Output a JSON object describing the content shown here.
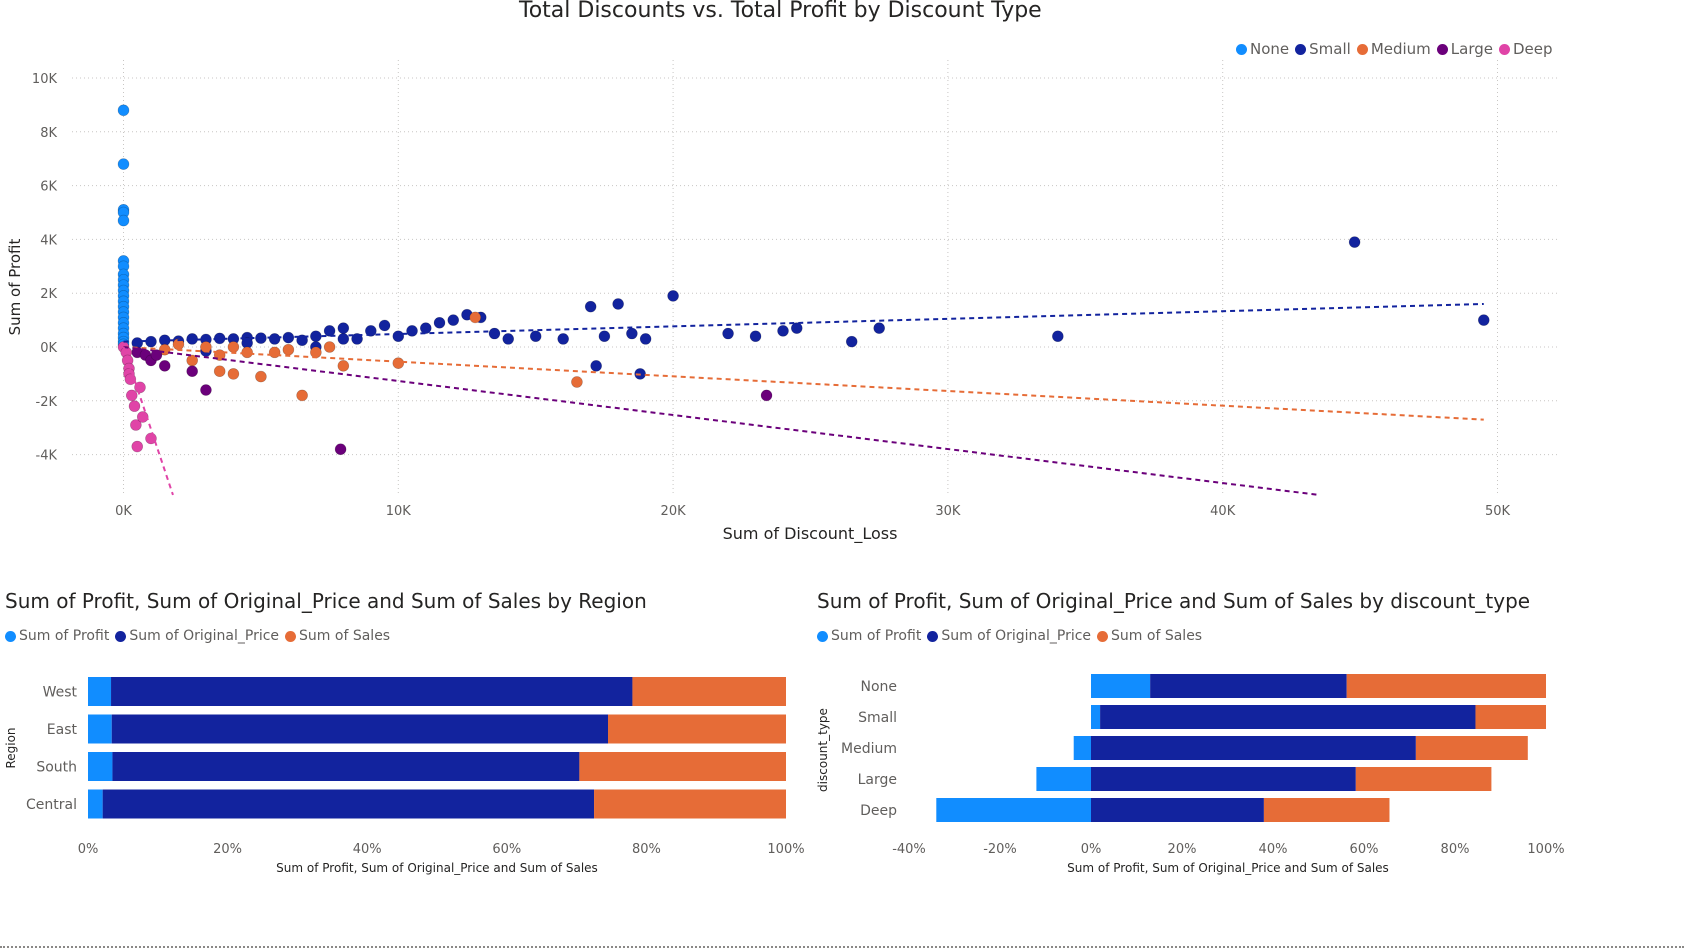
{
  "colors": {
    "None": "#118DFF",
    "Small": "#12239E",
    "Medium": "#E66C37",
    "Large": "#6B007B",
    "Deep": "#E044A7"
  },
  "chart_data": [
    {
      "type": "scatter",
      "title": "Total Discounts vs. Total Profit by Discount Type",
      "xlabel": "Sum of Discount_Loss",
      "ylabel": "Sum of Profit",
      "xlim": [
        -4500,
        53000
      ],
      "ylim": [
        -5500,
        10500
      ],
      "xticks": [
        0,
        10000,
        20000,
        30000,
        40000,
        50000
      ],
      "xtick_labels": [
        "0K",
        "10K",
        "20K",
        "30K",
        "40K",
        "50K"
      ],
      "yticks": [
        -4000,
        -2000,
        0,
        2000,
        4000,
        6000,
        8000,
        10000
      ],
      "ytick_labels": [
        "-4K",
        "-2K",
        "0K",
        "2K",
        "4K",
        "6K",
        "8K",
        "10K"
      ],
      "legend_position": "top-right",
      "grid": true,
      "series": [
        {
          "name": "None",
          "color": "#118DFF",
          "points": [
            [
              0,
              8800
            ],
            [
              0,
              6800
            ],
            [
              0,
              5100
            ],
            [
              0,
              5000
            ],
            [
              0,
              4700
            ],
            [
              0,
              3200
            ],
            [
              0,
              3000
            ],
            [
              0,
              2700
            ],
            [
              0,
              2500
            ],
            [
              0,
              2300
            ],
            [
              0,
              2100
            ],
            [
              0,
              1900
            ],
            [
              0,
              1700
            ],
            [
              0,
              1500
            ],
            [
              0,
              1300
            ],
            [
              0,
              1100
            ],
            [
              0,
              900
            ],
            [
              0,
              700
            ],
            [
              0,
              500
            ],
            [
              0,
              350
            ],
            [
              0,
              200
            ],
            [
              0,
              100
            ]
          ],
          "trend": null
        },
        {
          "name": "Small",
          "color": "#12239E",
          "points": [
            [
              500,
              150
            ],
            [
              1000,
              200
            ],
            [
              1500,
              250
            ],
            [
              2000,
              220
            ],
            [
              2500,
              300
            ],
            [
              3000,
              280
            ],
            [
              3500,
              320
            ],
            [
              4000,
              300
            ],
            [
              4500,
              350
            ],
            [
              5000,
              330
            ],
            [
              5500,
              300
            ],
            [
              6000,
              350
            ],
            [
              6500,
              250
            ],
            [
              7000,
              400
            ],
            [
              7500,
              600
            ],
            [
              8000,
              700
            ],
            [
              8000,
              300
            ],
            [
              8500,
              300
            ],
            [
              9000,
              600
            ],
            [
              9500,
              800
            ],
            [
              10000,
              400
            ],
            [
              10500,
              600
            ],
            [
              11000,
              700
            ],
            [
              11500,
              900
            ],
            [
              12000,
              1000
            ],
            [
              12500,
              1200
            ],
            [
              13000,
              1100
            ],
            [
              13500,
              500
            ],
            [
              14000,
              300
            ],
            [
              15000,
              400
            ],
            [
              16000,
              300
            ],
            [
              17000,
              1500
            ],
            [
              17500,
              400
            ],
            [
              18000,
              1600
            ],
            [
              18500,
              500
            ],
            [
              19000,
              300
            ],
            [
              20000,
              1900
            ],
            [
              22000,
              500
            ],
            [
              23000,
              400
            ],
            [
              24000,
              600
            ],
            [
              24500,
              700
            ],
            [
              26500,
              200
            ],
            [
              27500,
              700
            ],
            [
              34000,
              400
            ],
            [
              44800,
              3900
            ],
            [
              49500,
              1000
            ],
            [
              17200,
              -700
            ],
            [
              18800,
              -1000
            ],
            [
              3000,
              -150
            ],
            [
              4500,
              150
            ],
            [
              7000,
              0
            ]
          ],
          "trend": [
            [
              0,
              200
            ],
            [
              49500,
              1600
            ]
          ]
        },
        {
          "name": "Medium",
          "color": "#E66C37",
          "points": [
            [
              1500,
              -100
            ],
            [
              2000,
              100
            ],
            [
              2500,
              -500
            ],
            [
              3000,
              0
            ],
            [
              3500,
              -300
            ],
            [
              3500,
              -900
            ],
            [
              4000,
              0
            ],
            [
              4000,
              -1000
            ],
            [
              4500,
              -200
            ],
            [
              5000,
              -1100
            ],
            [
              5500,
              -200
            ],
            [
              6000,
              -100
            ],
            [
              6500,
              -1800
            ],
            [
              7000,
              -200
            ],
            [
              7500,
              0
            ],
            [
              8000,
              -700
            ],
            [
              10000,
              -600
            ],
            [
              12800,
              1100
            ],
            [
              16500,
              -1300
            ]
          ],
          "trend": [
            [
              0,
              0
            ],
            [
              49500,
              -2700
            ]
          ]
        },
        {
          "name": "Large",
          "color": "#6B007B",
          "points": [
            [
              500,
              -200
            ],
            [
              800,
              -300
            ],
            [
              1000,
              -500
            ],
            [
              1200,
              -300
            ],
            [
              1500,
              -700
            ],
            [
              2500,
              -900
            ],
            [
              3000,
              -1600
            ],
            [
              7900,
              -3800
            ],
            [
              23400,
              -1800
            ]
          ],
          "trend": [
            [
              0,
              0
            ],
            [
              43500,
              -5500
            ]
          ]
        },
        {
          "name": "Deep",
          "color": "#E044A7",
          "points": [
            [
              0,
              0
            ],
            [
              100,
              -200
            ],
            [
              150,
              -500
            ],
            [
              200,
              -800
            ],
            [
              200,
              -1000
            ],
            [
              250,
              -1200
            ],
            [
              300,
              -1800
            ],
            [
              400,
              -2200
            ],
            [
              450,
              -2900
            ],
            [
              500,
              -3700
            ],
            [
              700,
              -2600
            ],
            [
              1000,
              -3400
            ],
            [
              600,
              -1500
            ]
          ],
          "trend": [
            [
              0,
              0
            ],
            [
              1800,
              -5500
            ]
          ]
        }
      ]
    },
    {
      "type": "bar",
      "stacked": "100%",
      "orientation": "horizontal",
      "title": "Sum of Profit, Sum of Original_Price and Sum of Sales by Region",
      "xlabel": "Sum of Profit, Sum of Original_Price and Sum of Sales",
      "ylabel": "Region",
      "categories": [
        "West",
        "East",
        "South",
        "Central"
      ],
      "xlim": [
        0,
        100
      ],
      "xticks": [
        0,
        20,
        40,
        60,
        80,
        100
      ],
      "xtick_labels": [
        "0%",
        "20%",
        "40%",
        "60%",
        "80%",
        "100%"
      ],
      "legend_position": "top-left",
      "series": [
        {
          "name": "Sum of Profit",
          "color": "#118DFF",
          "values": [
            3.3,
            3.4,
            3.5,
            2.1
          ]
        },
        {
          "name": "Sum of Original_Price",
          "color": "#12239E",
          "values": [
            74.7,
            71.1,
            66.9,
            70.4
          ]
        },
        {
          "name": "Sum of Sales",
          "color": "#E66C37",
          "values": [
            22.0,
            25.5,
            29.6,
            27.5
          ]
        }
      ]
    },
    {
      "type": "bar",
      "stacked": "100%",
      "orientation": "horizontal",
      "title": "Sum of Profit, Sum of Original_Price and Sum of Sales by discount_type",
      "xlabel": "Sum of Profit, Sum of Original_Price and Sum of Sales",
      "ylabel": "discount_type",
      "categories": [
        "None",
        "Small",
        "Medium",
        "Large",
        "Deep"
      ],
      "xlim": [
        -40,
        100
      ],
      "xticks": [
        -40,
        -20,
        0,
        20,
        40,
        60,
        80,
        100
      ],
      "xtick_labels": [
        "-40%",
        "-20%",
        "0%",
        "20%",
        "40%",
        "60%",
        "80%",
        "100%"
      ],
      "legend_position": "top-left",
      "series": [
        {
          "name": "Sum of Profit",
          "color": "#118DFF",
          "values": [
            13.0,
            2.0,
            -3.8,
            -12.0,
            -34.0
          ]
        },
        {
          "name": "Sum of Original_Price",
          "color": "#12239E",
          "values": [
            43.2,
            82.5,
            71.4,
            58.2,
            38.0
          ]
        },
        {
          "name": "Sum of Sales",
          "color": "#E66C37",
          "values": [
            43.8,
            15.5,
            24.6,
            29.8,
            27.6
          ]
        }
      ]
    }
  ]
}
